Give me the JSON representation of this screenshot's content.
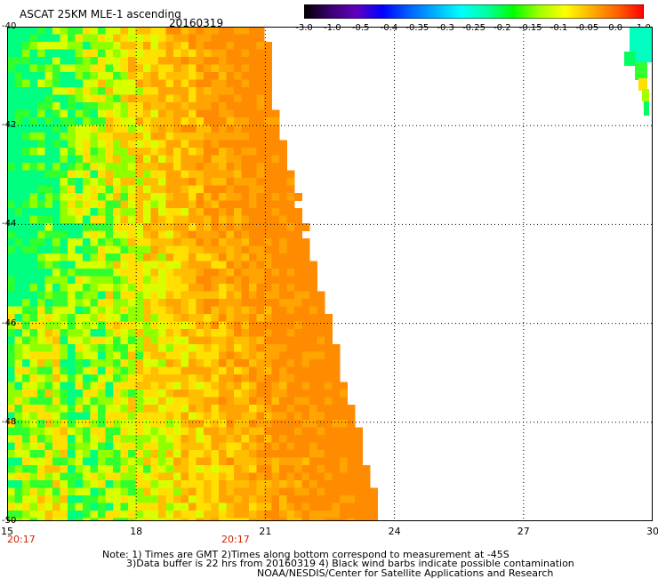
{
  "header": {
    "title": "ASCAT 25KM MLE-1 ascending",
    "date": "20160319"
  },
  "colorbar": {
    "labels": [
      "-3.0",
      "-1.0",
      "-0.5",
      "-0.4",
      "-0.35",
      "-0.3",
      "-0.25",
      "-0.2",
      "-0.15",
      "-0.1",
      "-0.05",
      "0.0",
      "1.0"
    ],
    "colors": [
      "#000000",
      "#3a0070",
      "#6000c0",
      "#0000ff",
      "#0060ff",
      "#00b0ff",
      "#00ffff",
      "#00ffa0",
      "#00ff00",
      "#a0ff00",
      "#ffff00",
      "#ffb000",
      "#ff6000",
      "#ff0000"
    ]
  },
  "axes": {
    "x_ticks": [
      "15",
      "18",
      "21",
      "24",
      "27",
      "30"
    ],
    "y_ticks": [
      "-40",
      "-42",
      "-44",
      "-46",
      "-48",
      "-50"
    ],
    "x_range": [
      15,
      30
    ],
    "y_range": [
      -50,
      -40
    ]
  },
  "times": [
    "20:17",
    "20:17"
  ],
  "notes": [
    "Note: 1) Times are GMT 2)Times along bottom correspond to measurement at -45S",
    "3)Data buffer is 22 hrs from 20160319 4) Black wind barbs indicate possible contamination",
    "NOAA/NESDIS/Center for Satellite Applications and Research"
  ],
  "swath": {
    "east_edge_lon": [
      {
        "lat": -40,
        "lon": 21.1
      },
      {
        "lat": -42,
        "lon": 21.4
      },
      {
        "lat": -44,
        "lon": 22.0
      },
      {
        "lat": -46,
        "lon": 22.6
      },
      {
        "lat": -48,
        "lon": 23.2
      },
      {
        "lat": -50,
        "lon": 23.8
      }
    ],
    "dominant_colors": [
      "#ff9a00",
      "#ffa800",
      "#ffc000",
      "#e0ff00",
      "#a8ff00",
      "#00ff40",
      "#00ffc0"
    ]
  }
}
